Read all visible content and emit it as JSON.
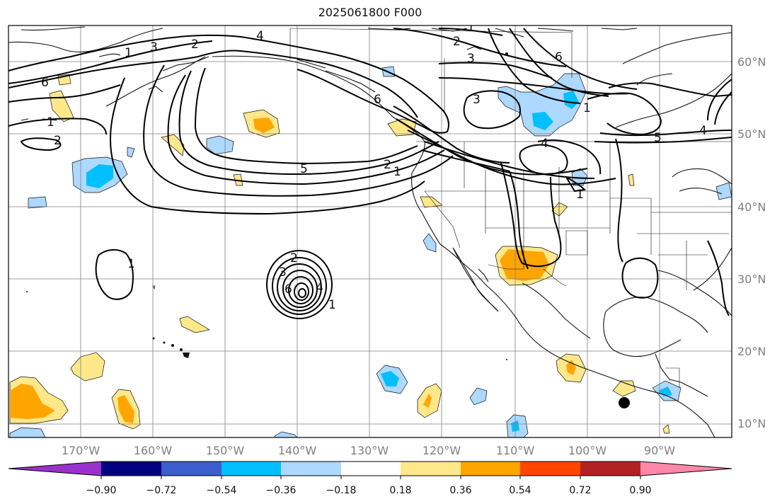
{
  "title": "2025061800 F000",
  "map": {
    "lat_ticks": [
      "60°N",
      "50°N",
      "40°N",
      "30°N",
      "20°N",
      "10°N"
    ],
    "lon_ticks": [
      "170°W",
      "160°W",
      "150°W",
      "140°W",
      "130°W",
      "120°W",
      "110°W",
      "100°W",
      "90°W"
    ],
    "contour_labels": [
      {
        "id": "c1",
        "text": "1"
      },
      {
        "id": "c2",
        "text": "2"
      },
      {
        "id": "c3",
        "text": "4"
      },
      {
        "id": "c4",
        "text": "2"
      },
      {
        "id": "c5",
        "text": "3"
      },
      {
        "id": "c6",
        "text": "6"
      },
      {
        "id": "c7",
        "text": "6"
      },
      {
        "id": "c8",
        "text": "3"
      },
      {
        "id": "c9",
        "text": "1"
      },
      {
        "id": "c10",
        "text": "2"
      },
      {
        "id": "c11",
        "text": "5"
      },
      {
        "id": "c12",
        "text": "2"
      },
      {
        "id": "c13",
        "text": "1"
      },
      {
        "id": "c14",
        "text": "6"
      },
      {
        "id": "c15",
        "text": "3"
      },
      {
        "id": "c16",
        "text": "5"
      },
      {
        "id": "c17",
        "text": "4"
      },
      {
        "id": "c18",
        "text": "1"
      },
      {
        "id": "c19",
        "text": "1"
      },
      {
        "id": "c20",
        "text": "2"
      },
      {
        "id": "c21",
        "text": "3"
      },
      {
        "id": "c22",
        "text": "1"
      },
      {
        "id": "c23",
        "text": "4"
      },
      {
        "id": "c24",
        "text": "6"
      },
      {
        "id": "c25",
        "text": "1"
      },
      {
        "id": "c26",
        "text": "4"
      },
      {
        "id": "c27",
        "text": "1"
      }
    ]
  },
  "colorbar": {
    "colors": [
      "#9932cc",
      "#000080",
      "#3a5fcd",
      "#00bfff",
      "#add8ff",
      "#ffffff",
      "#ffe88a",
      "#ffa500",
      "#ff4500",
      "#b22222",
      "#ff88aa"
    ],
    "tick_labels": [
      "−0.90",
      "−0.72",
      "−0.54",
      "−0.36",
      "−0.18",
      "0.18",
      "0.36",
      "0.54",
      "0.72",
      "0.90"
    ]
  }
}
